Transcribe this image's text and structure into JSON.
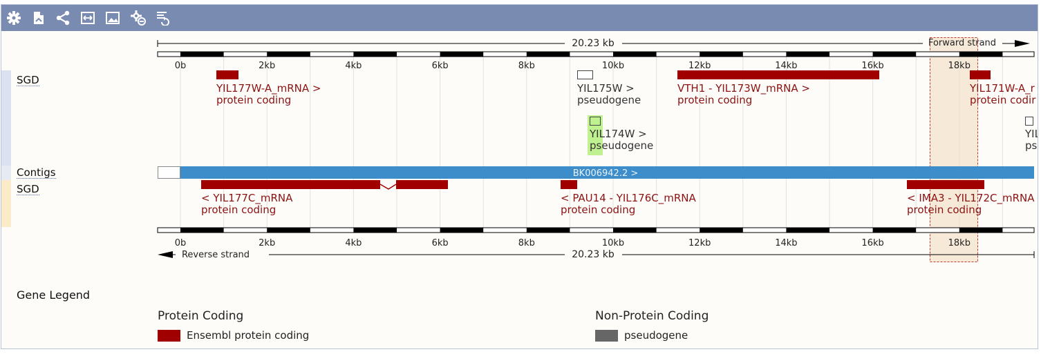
{
  "toolbar": {
    "icons": [
      "gear-icon",
      "export-icon",
      "share-icon",
      "resize-icon",
      "image-icon",
      "settings-icon",
      "reset-icon"
    ]
  },
  "ruler": {
    "length_label": "20.23 kb",
    "forward_label": "Forward strand",
    "reverse_label": "Reverse strand",
    "ticks": [
      "0b",
      "2kb",
      "4kb",
      "6kb",
      "8kb",
      "10kb",
      "12kb",
      "14kb",
      "16kb",
      "18kb"
    ]
  },
  "tracks": {
    "forward_label": "SGD",
    "contigs_label": "Contigs",
    "reverse_label": "SGD"
  },
  "forward_genes": [
    {
      "name": "YIL177W-A_mRNA >",
      "biotype": "protein coding",
      "type": "coding"
    },
    {
      "name": "YIL175W >",
      "biotype": "pseudogene",
      "type": "pseudogene"
    },
    {
      "name": "YIL174W >",
      "biotype": "pseudogene",
      "type": "pseudogene"
    },
    {
      "name": "VTH1 - YIL173W_mRNA >",
      "biotype": "protein coding",
      "type": "coding"
    },
    {
      "name": "YIL171W-A_r",
      "biotype": "protein codir",
      "type": "coding"
    },
    {
      "name": "YIL",
      "biotype": "ps",
      "type": "pseudogene"
    }
  ],
  "contig": {
    "label": "BK006942.2 >"
  },
  "reverse_genes": [
    {
      "name": "< YIL177C_mRNA",
      "biotype": "protein coding"
    },
    {
      "name": "< PAU14 - YIL176C_mRNA",
      "biotype": "protein coding"
    },
    {
      "name": "< IMA3 - YIL172C_mRNA",
      "biotype": "protein coding"
    }
  ],
  "legend": {
    "title": "Gene Legend",
    "protein_coding_title": "Protein Coding",
    "protein_coding_item": "Ensembl protein coding",
    "non_coding_title": "Non-Protein Coding",
    "non_coding_item": "pseudogene"
  },
  "colors": {
    "toolbar": "#7a8bb1",
    "coding": "#a00000",
    "pseudogene": "#666666",
    "contig": "#3c8dca",
    "highlight": "#f4e3cc"
  }
}
